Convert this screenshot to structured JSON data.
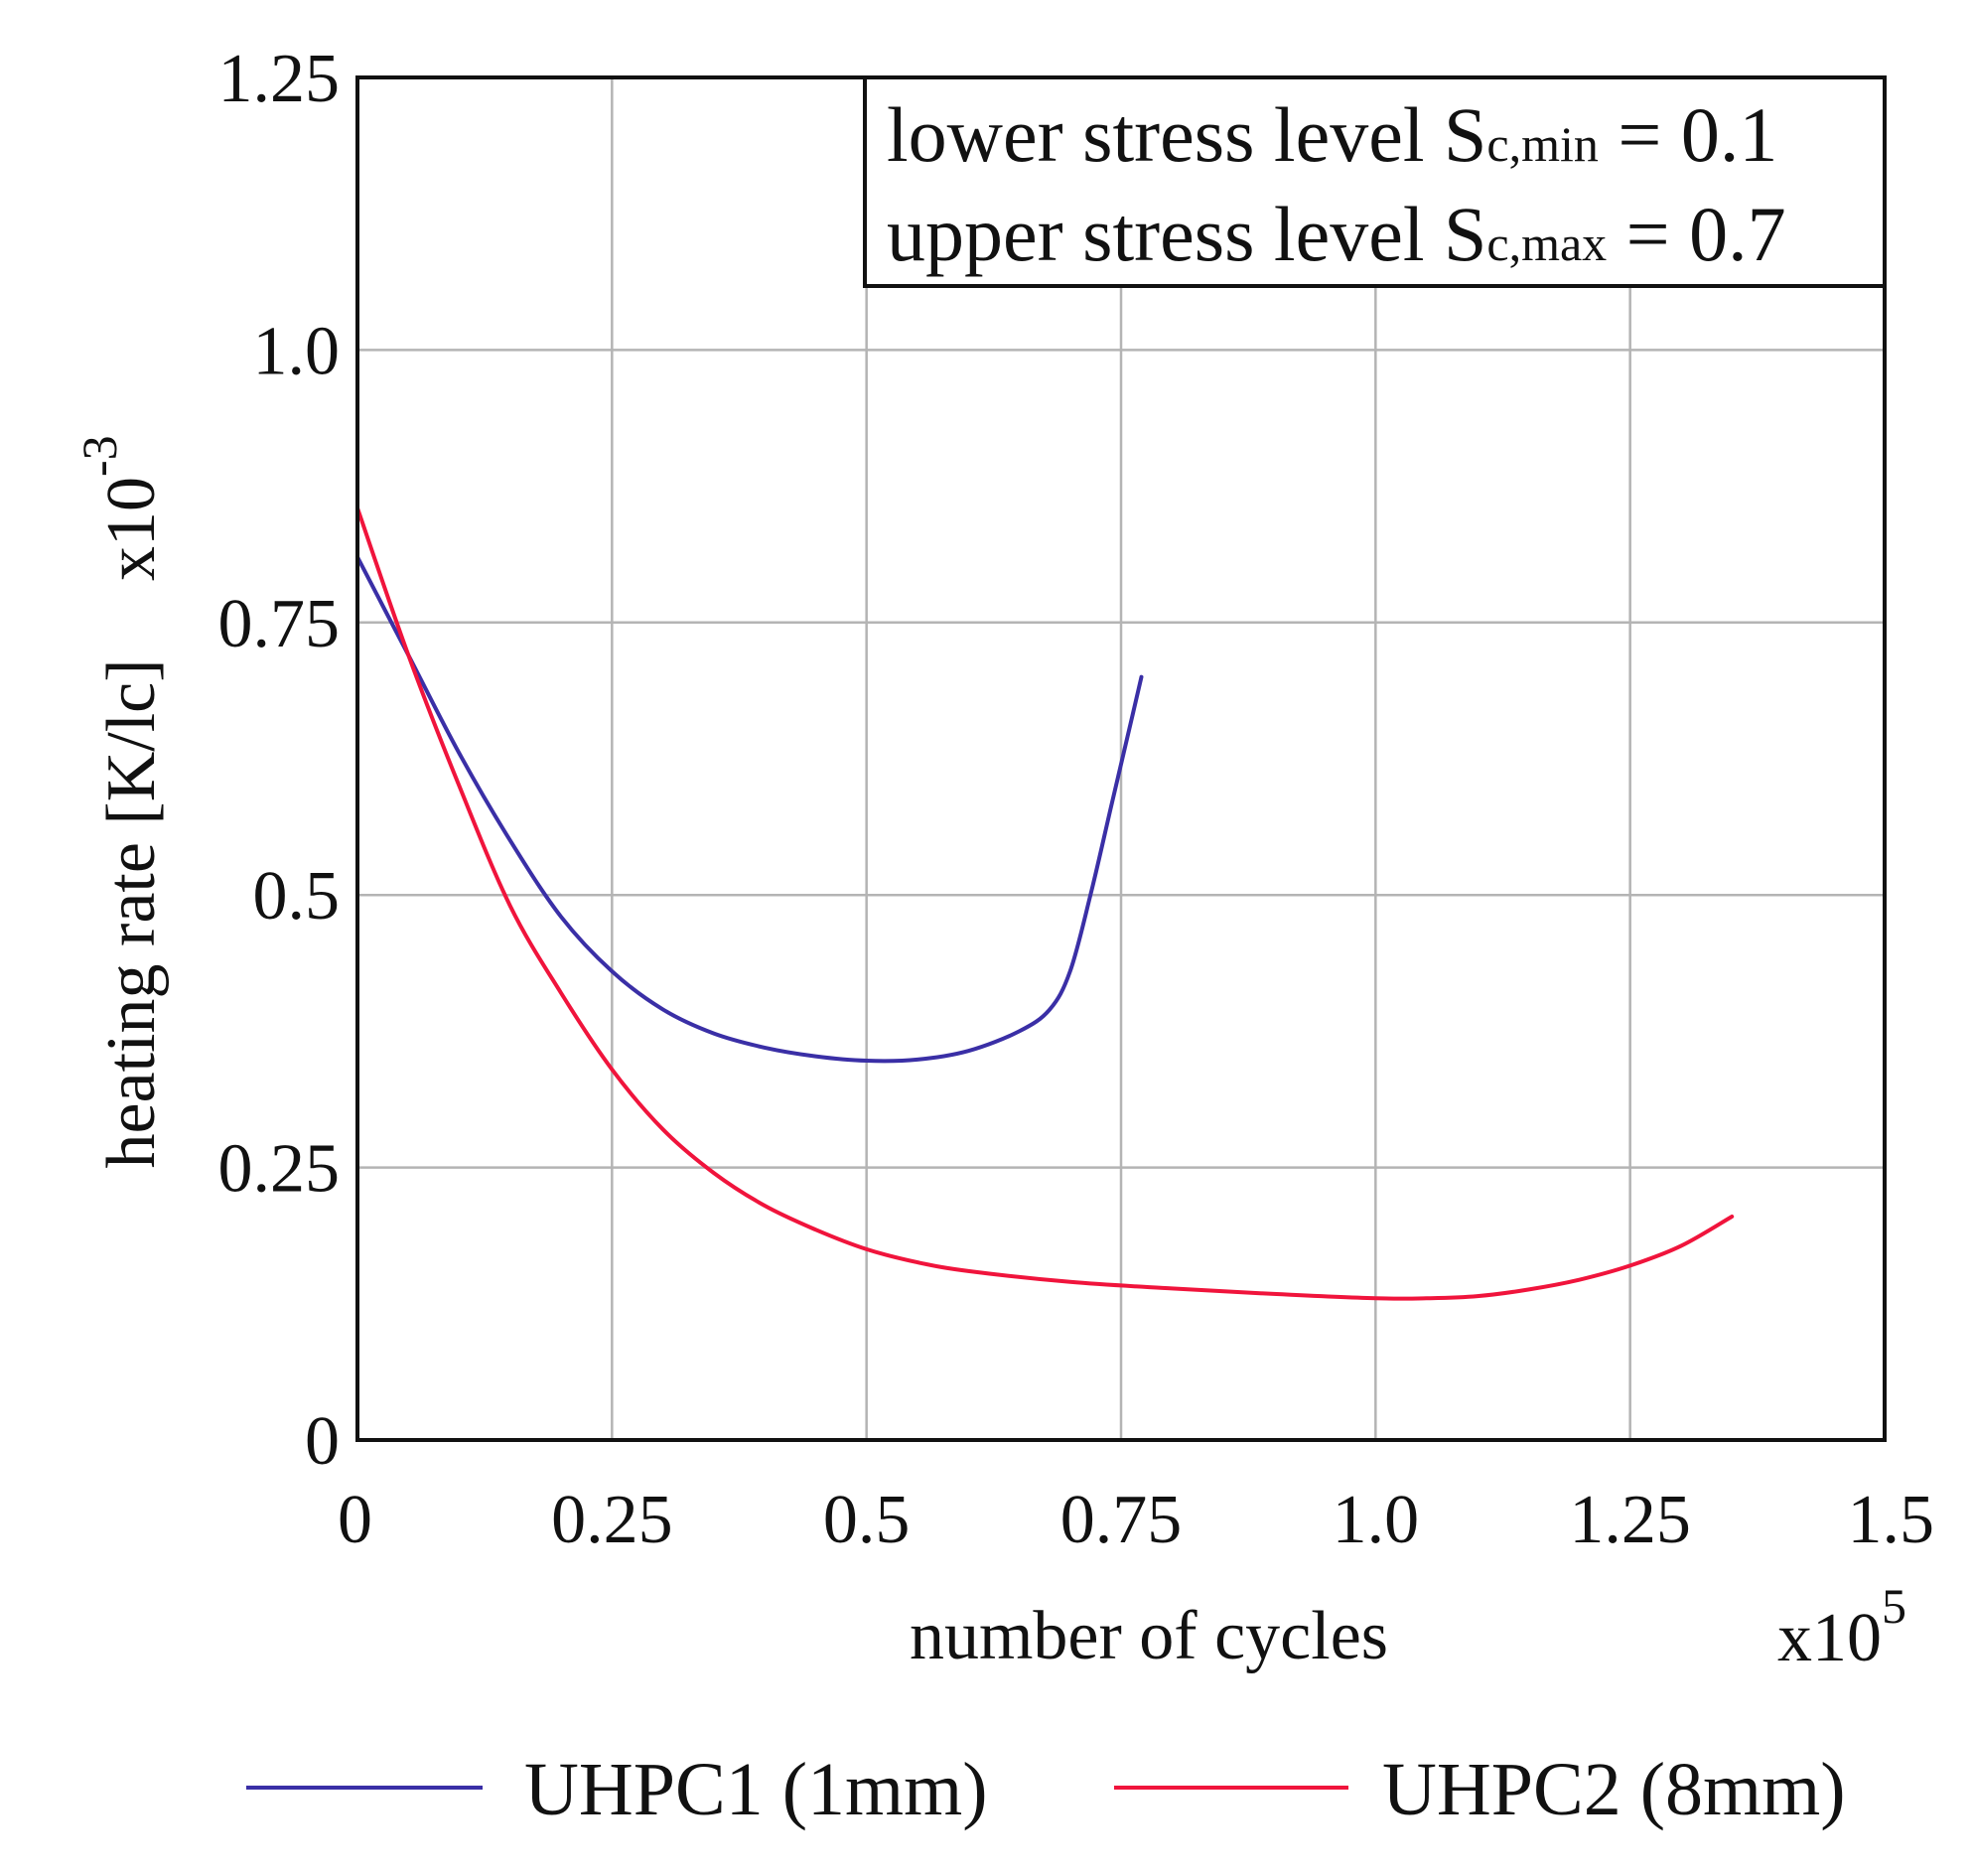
{
  "chart_data": {
    "type": "line",
    "xlabel": "number of cycles",
    "x_multiplier_base": "x10",
    "x_multiplier_exp": "5",
    "ylabel": "heating rate [K/lc]",
    "y_multiplier_base": "x10",
    "y_multiplier_exp": "-3",
    "xlim": [
      0,
      1.5
    ],
    "ylim": [
      0,
      1.25
    ],
    "x_ticks": [
      0,
      0.25,
      0.5,
      0.75,
      1.0,
      1.25,
      1.5
    ],
    "x_tick_labels": [
      "0",
      "0.25",
      "0.5",
      "0.75",
      "1.0",
      "1.25",
      "1.5"
    ],
    "y_ticks": [
      0,
      0.25,
      0.5,
      0.75,
      1.0,
      1.25
    ],
    "y_tick_labels": [
      "0",
      "0.25",
      "0.5",
      "0.75",
      "1.0",
      "1.25"
    ],
    "grid": true,
    "annotation": {
      "line1_pre": "lower stress level S",
      "line1_sub": "c,min",
      "line1_post": " = 0.1",
      "line2_pre": "upper stress level S",
      "line2_sub": "c,max",
      "line2_post": " = 0.7"
    },
    "legend_position": "bottom",
    "series": [
      {
        "name": "UHPC1 (1mm)",
        "color": "#3a2fa6",
        "x": [
          0,
          0.05,
          0.1,
          0.15,
          0.2,
          0.25,
          0.3,
          0.35,
          0.4,
          0.45,
          0.5,
          0.55,
          0.6,
          0.65,
          0.68,
          0.7,
          0.72,
          0.74,
          0.76,
          0.77
        ],
        "y": [
          0.81,
          0.72,
          0.63,
          0.55,
          0.48,
          0.43,
          0.395,
          0.373,
          0.36,
          0.352,
          0.348,
          0.349,
          0.357,
          0.375,
          0.395,
          0.43,
          0.5,
          0.58,
          0.66,
          0.7
        ]
      },
      {
        "name": "UHPC2 (8mm)",
        "color": "#f0143c",
        "x": [
          0,
          0.05,
          0.1,
          0.15,
          0.2,
          0.25,
          0.3,
          0.35,
          0.4,
          0.45,
          0.5,
          0.55,
          0.6,
          0.7,
          0.8,
          0.9,
          1.0,
          1.05,
          1.1,
          1.15,
          1.2,
          1.25,
          1.3,
          1.35
        ],
        "y": [
          0.855,
          0.72,
          0.6,
          0.49,
          0.41,
          0.34,
          0.285,
          0.245,
          0.215,
          0.193,
          0.175,
          0.163,
          0.155,
          0.145,
          0.139,
          0.134,
          0.13,
          0.13,
          0.132,
          0.138,
          0.147,
          0.16,
          0.178,
          0.205
        ]
      }
    ]
  }
}
